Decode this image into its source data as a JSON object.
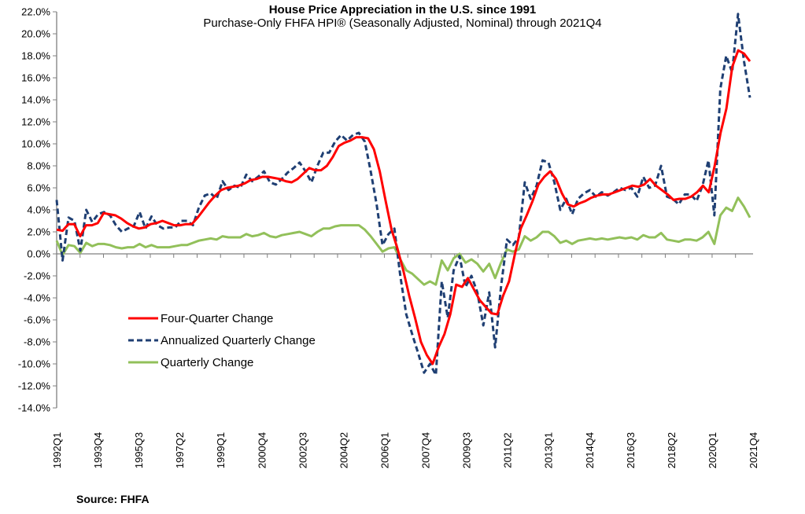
{
  "chart_data": {
    "type": "line",
    "title": "House Price Appreciation in the U.S. since 1991",
    "subtitle": "Purchase-Only FHFA HPI® (Seasonally Adjusted, Nominal) through 2021Q4",
    "source": "Source:  FHFA",
    "xlabel": "",
    "ylabel": "",
    "ylim": [
      -14,
      22
    ],
    "ytick_step": 2,
    "yticks": [
      "22.0%",
      "20.0%",
      "18.0%",
      "16.0%",
      "14.0%",
      "12.0%",
      "10.0%",
      "8.0%",
      "6.0%",
      "4.0%",
      "2.0%",
      "0.0%",
      "-2.0%",
      "-4.0%",
      "-6.0%",
      "-8.0%",
      "-10.0%",
      "-12.0%",
      "-14.0%"
    ],
    "x_start": "1992Q1",
    "x_end": "2021Q4",
    "xtick_labels": [
      "1992Q1",
      "1993Q4",
      "1995Q3",
      "1997Q2",
      "1999Q1",
      "2000Q4",
      "2002Q3",
      "2004Q2",
      "2006Q1",
      "2007Q4",
      "2009Q3",
      "2011Q2",
      "2013Q1",
      "2014Q4",
      "2016Q3",
      "2018Q2",
      "2020Q1",
      "2021Q4"
    ],
    "legend_position": "lower-left",
    "grid": false,
    "series": [
      {
        "name": "Four-Quarter Change",
        "color": "#ff0000",
        "style": "solid",
        "values": [
          2.2,
          2.1,
          2.7,
          2.7,
          1.6,
          2.6,
          2.6,
          2.8,
          3.7,
          3.6,
          3.5,
          3.2,
          2.8,
          2.5,
          2.3,
          2.4,
          2.7,
          2.8,
          3.0,
          2.8,
          2.6,
          2.6,
          2.7,
          2.7,
          3.3,
          4.0,
          4.7,
          5.3,
          5.8,
          6.0,
          6.1,
          6.2,
          6.4,
          6.7,
          6.8,
          7.0,
          7.0,
          6.9,
          6.8,
          6.6,
          6.5,
          6.8,
          7.3,
          7.8,
          7.6,
          7.6,
          8.0,
          8.8,
          9.8,
          10.1,
          10.3,
          10.6,
          10.6,
          10.5,
          9.5,
          7.5,
          4.8,
          2.2,
          0.5,
          -1.5,
          -3.8,
          -5.8,
          -8.0,
          -9.2,
          -10.0,
          -8.5,
          -7.3,
          -5.5,
          -2.8,
          -3.0,
          -2.2,
          -3.2,
          -4.2,
          -4.8,
          -5.4,
          -5.5,
          -3.8,
          -2.5,
          0.0,
          2.3,
          3.5,
          4.8,
          6.3,
          7.0,
          7.5,
          6.8,
          5.5,
          4.5,
          4.3,
          4.6,
          4.8,
          5.1,
          5.3,
          5.4,
          5.4,
          5.6,
          5.8,
          6.0,
          6.2,
          6.1,
          6.3,
          6.8,
          6.2,
          5.8,
          5.4,
          4.9,
          5.0,
          5.0,
          5.2,
          5.6,
          6.2,
          5.6,
          8.0,
          11.0,
          13.2,
          17.0,
          18.5,
          18.2,
          17.5
        ],
        "values_note": "estimated from pixels; 119 shown points mapped across 1992Q1–2021Q4"
      },
      {
        "name": "Annualized Quarterly Change",
        "color": "#1f3f73",
        "style": "dashed",
        "values": [
          4.9,
          -0.6,
          3.3,
          3.0,
          0.3,
          4.0,
          2.9,
          3.6,
          3.8,
          3.5,
          2.6,
          2.0,
          2.3,
          2.5,
          3.8,
          2.3,
          3.4,
          2.6,
          2.3,
          2.4,
          2.4,
          3.0,
          3.0,
          2.6,
          4.2,
          5.3,
          5.5,
          5.0,
          6.6,
          5.8,
          6.2,
          6.0,
          7.2,
          6.6,
          7.0,
          7.5,
          6.5,
          6.3,
          6.8,
          7.4,
          7.8,
          8.3,
          7.5,
          6.5,
          8.0,
          9.2,
          9.2,
          10.2,
          10.8,
          10.3,
          10.8,
          11.0,
          10.2,
          7.5,
          4.5,
          0.8,
          1.8,
          2.3,
          -2.0,
          -5.5,
          -7.3,
          -9.0,
          -10.8,
          -10.0,
          -11.0,
          -2.5,
          -5.8,
          -1.5,
          -0.2,
          -3.0,
          -2.0,
          -3.5,
          -6.5,
          -3.5,
          -8.5,
          -3.0,
          1.3,
          0.8,
          1.5,
          6.5,
          5.0,
          6.2,
          8.5,
          8.3,
          6.5,
          4.0,
          5.0,
          3.6,
          5.0,
          5.5,
          5.8,
          5.2,
          5.6,
          5.3,
          5.6,
          6.0,
          5.8,
          6.0,
          5.2,
          7.0,
          6.0,
          6.2,
          8.0,
          5.2,
          5.0,
          4.5,
          5.4,
          5.4,
          4.8,
          6.2,
          8.5,
          3.5,
          15.0,
          18.0,
          16.5,
          21.8,
          17.5,
          14.2
        ],
        "values_note": "estimated from pixels"
      },
      {
        "name": "Quarterly Change",
        "color": "#92c05a",
        "style": "solid",
        "values": [
          1.2,
          -0.1,
          0.8,
          0.7,
          0.1,
          1.0,
          0.7,
          0.9,
          0.9,
          0.8,
          0.6,
          0.5,
          0.6,
          0.6,
          0.9,
          0.6,
          0.8,
          0.6,
          0.6,
          0.6,
          0.7,
          0.8,
          0.8,
          1.0,
          1.2,
          1.3,
          1.4,
          1.3,
          1.6,
          1.5,
          1.5,
          1.5,
          1.8,
          1.6,
          1.7,
          1.9,
          1.6,
          1.5,
          1.7,
          1.8,
          1.9,
          2.0,
          1.8,
          1.6,
          2.0,
          2.3,
          2.3,
          2.5,
          2.6,
          2.6,
          2.6,
          2.6,
          2.2,
          1.6,
          0.9,
          0.2,
          0.5,
          0.6,
          -0.5,
          -1.5,
          -1.8,
          -2.3,
          -2.8,
          -2.5,
          -2.8,
          -0.6,
          -1.5,
          -0.4,
          0.0,
          -0.8,
          -0.5,
          -0.9,
          -1.6,
          -0.9,
          -2.2,
          -0.8,
          0.4,
          0.2,
          0.4,
          1.6,
          1.2,
          1.5,
          2.0,
          2.0,
          1.6,
          1.0,
          1.2,
          0.9,
          1.2,
          1.3,
          1.4,
          1.3,
          1.4,
          1.3,
          1.4,
          1.5,
          1.4,
          1.5,
          1.3,
          1.7,
          1.5,
          1.5,
          1.9,
          1.3,
          1.2,
          1.1,
          1.3,
          1.3,
          1.2,
          1.5,
          2.0,
          0.9,
          3.5,
          4.2,
          3.9,
          5.1,
          4.3,
          3.3
        ],
        "values_note": "estimated from pixels"
      }
    ]
  }
}
